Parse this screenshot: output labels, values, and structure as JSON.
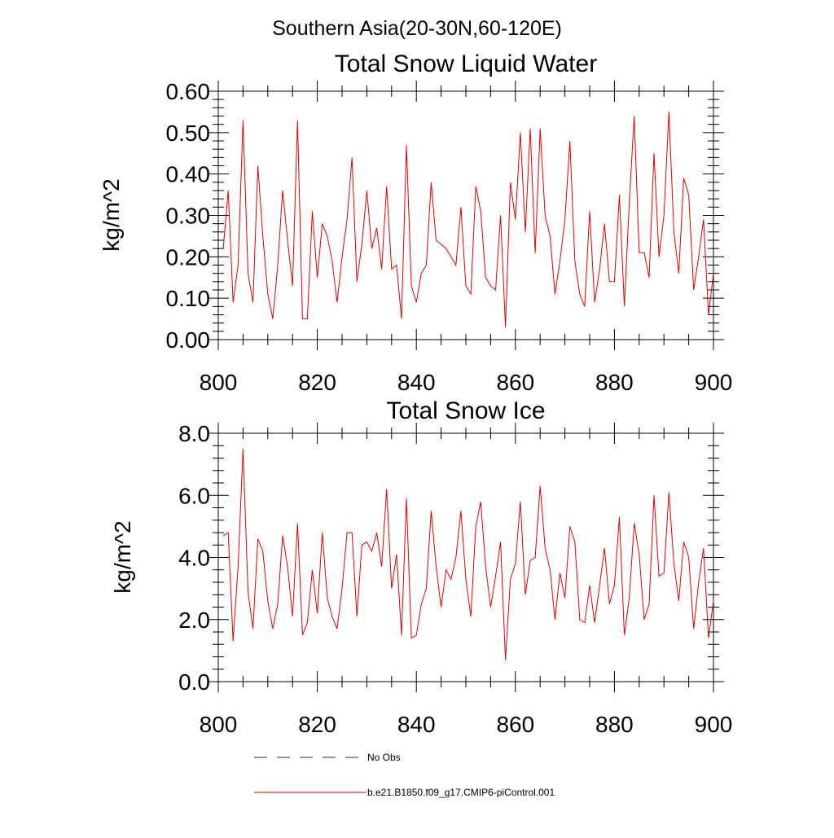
{
  "figure": {
    "suptitle": "Southern Asia(20-30N,60-120E)",
    "legend": [
      {
        "label": "No Obs",
        "style": "dashed",
        "color": "#1f2a5a"
      },
      {
        "label": "b.e21.B1850.f09_g17.CMIP6-piControl.001",
        "style": "solid",
        "color": "#e00000"
      }
    ]
  },
  "chart_data": [
    {
      "type": "line",
      "title": "Total Snow Liquid Water",
      "xlabel": "",
      "ylabel": "kg/m^2",
      "xlim": [
        800,
        900
      ],
      "ylim": [
        0,
        0.6
      ],
      "xticks": [
        "800",
        "820",
        "840",
        "860",
        "880",
        "900"
      ],
      "xtick_values": [
        800,
        820,
        840,
        860,
        880,
        900
      ],
      "yticks": [
        "0.00",
        "0.10",
        "0.20",
        "0.30",
        "0.40",
        "0.50",
        "0.60"
      ],
      "ytick_values": [
        0,
        0.1,
        0.2,
        0.3,
        0.4,
        0.5,
        0.6
      ],
      "grid": false,
      "series": [
        {
          "name": "b.e21.B1850.f09_g17.CMIP6-piControl.001",
          "color": "#e00000",
          "x": [
            801,
            802,
            803,
            804,
            805,
            806,
            807,
            808,
            809,
            810,
            811,
            812,
            813,
            814,
            815,
            816,
            817,
            818,
            819,
            820,
            821,
            822,
            823,
            824,
            825,
            826,
            827,
            828,
            829,
            830,
            831,
            832,
            833,
            834,
            835,
            836,
            837,
            838,
            839,
            840,
            841,
            842,
            843,
            844,
            845,
            846,
            847,
            848,
            849,
            850,
            851,
            852,
            853,
            854,
            855,
            856,
            857,
            858,
            859,
            860,
            861,
            862,
            863,
            864,
            865,
            866,
            867,
            868,
            869,
            870,
            871,
            872,
            873,
            874,
            875,
            876,
            877,
            878,
            879,
            880,
            881,
            882,
            883,
            884,
            885,
            886,
            887,
            888,
            889,
            890,
            891,
            892,
            893,
            894,
            895,
            896,
            897,
            898,
            899,
            900
          ],
          "values": [
            0.22,
            0.36,
            0.09,
            0.18,
            0.53,
            0.16,
            0.09,
            0.42,
            0.25,
            0.11,
            0.05,
            0.18,
            0.36,
            0.24,
            0.13,
            0.53,
            0.05,
            0.05,
            0.31,
            0.15,
            0.28,
            0.25,
            0.19,
            0.09,
            0.2,
            0.29,
            0.44,
            0.14,
            0.23,
            0.36,
            0.22,
            0.27,
            0.17,
            0.37,
            0.17,
            0.18,
            0.05,
            0.47,
            0.13,
            0.09,
            0.16,
            0.18,
            0.38,
            0.24,
            0.23,
            0.22,
            0.2,
            0.18,
            0.32,
            0.13,
            0.11,
            0.37,
            0.31,
            0.15,
            0.13,
            0.12,
            0.3,
            0.03,
            0.38,
            0.29,
            0.5,
            0.26,
            0.51,
            0.21,
            0.51,
            0.3,
            0.25,
            0.11,
            0.19,
            0.29,
            0.48,
            0.19,
            0.11,
            0.08,
            0.31,
            0.09,
            0.17,
            0.28,
            0.14,
            0.14,
            0.35,
            0.08,
            0.33,
            0.54,
            0.21,
            0.21,
            0.15,
            0.45,
            0.2,
            0.3,
            0.55,
            0.26,
            0.16,
            0.39,
            0.35,
            0.12,
            0.2,
            0.29,
            0.06,
            0.16
          ]
        }
      ]
    },
    {
      "type": "line",
      "title": "Total Snow Ice",
      "xlabel": "",
      "ylabel": "kg/m^2",
      "xlim": [
        800,
        900
      ],
      "ylim": [
        0,
        8
      ],
      "xticks": [
        "800",
        "820",
        "840",
        "860",
        "880",
        "900"
      ],
      "xtick_values": [
        800,
        820,
        840,
        860,
        880,
        900
      ],
      "yticks": [
        "0.0",
        "2.0",
        "4.0",
        "6.0",
        "8.0"
      ],
      "ytick_values": [
        0,
        2,
        4,
        6,
        8
      ],
      "grid": false,
      "series": [
        {
          "name": "b.e21.B1850.f09_g17.CMIP6-piControl.001",
          "color": "#e00000",
          "x": [
            801,
            802,
            803,
            804,
            805,
            806,
            807,
            808,
            809,
            810,
            811,
            812,
            813,
            814,
            815,
            816,
            817,
            818,
            819,
            820,
            821,
            822,
            823,
            824,
            825,
            826,
            827,
            828,
            829,
            830,
            831,
            832,
            833,
            834,
            835,
            836,
            837,
            838,
            839,
            840,
            841,
            842,
            843,
            844,
            845,
            846,
            847,
            848,
            849,
            850,
            851,
            852,
            853,
            854,
            855,
            856,
            857,
            858,
            859,
            860,
            861,
            862,
            863,
            864,
            865,
            866,
            867,
            868,
            869,
            870,
            871,
            872,
            873,
            874,
            875,
            876,
            877,
            878,
            879,
            880,
            881,
            882,
            883,
            884,
            885,
            886,
            887,
            888,
            889,
            890,
            891,
            892,
            893,
            894,
            895,
            896,
            897,
            898,
            899,
            900
          ],
          "values": [
            4.7,
            4.8,
            1.3,
            3.7,
            7.5,
            2.9,
            1.7,
            4.6,
            4.2,
            2.6,
            1.7,
            2.5,
            4.7,
            3.7,
            2.1,
            5.1,
            1.5,
            1.9,
            3.6,
            2.2,
            4.8,
            2.7,
            2.1,
            1.7,
            3.0,
            4.8,
            4.8,
            2.1,
            4.4,
            4.5,
            4.2,
            4.8,
            3.7,
            6.2,
            3.0,
            4.1,
            1.5,
            5.9,
            1.4,
            1.5,
            2.5,
            3.0,
            5.5,
            3.7,
            2.4,
            3.6,
            3.3,
            4.0,
            5.5,
            3.3,
            2.1,
            5.0,
            5.8,
            3.7,
            2.4,
            3.4,
            4.5,
            0.7,
            3.3,
            3.8,
            5.8,
            2.8,
            3.9,
            4.0,
            6.3,
            4.3,
            3.6,
            2.0,
            3.5,
            2.7,
            5.0,
            4.5,
            2.0,
            1.9,
            3.1,
            1.9,
            3.1,
            4.3,
            2.5,
            3.1,
            5.3,
            1.5,
            2.7,
            5.1,
            4.1,
            2.0,
            2.5,
            6.0,
            3.4,
            3.5,
            6.1,
            3.8,
            2.6,
            4.5,
            4.0,
            1.7,
            3.2,
            4.3,
            1.4,
            2.6
          ]
        }
      ]
    }
  ]
}
